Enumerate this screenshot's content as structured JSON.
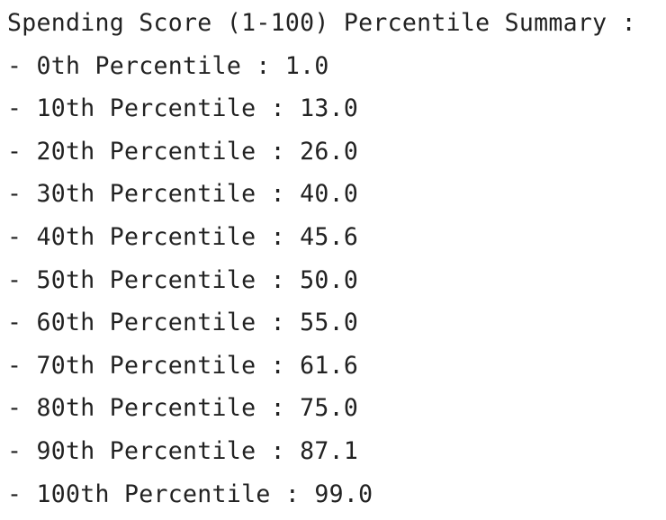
{
  "output": {
    "title": "Spending Score (1-100) Percentile Summary :",
    "lines": [
      "- 0th Percentile : 1.0",
      "- 10th Percentile : 13.0",
      "- 20th Percentile : 26.0",
      "- 30th Percentile : 40.0",
      "- 40th Percentile : 45.6",
      "- 50th Percentile : 50.0",
      "- 60th Percentile : 55.0",
      "- 70th Percentile : 61.6",
      "- 80th Percentile : 75.0",
      "- 90th Percentile : 87.1",
      "- 100th Percentile : 99.0"
    ]
  }
}
